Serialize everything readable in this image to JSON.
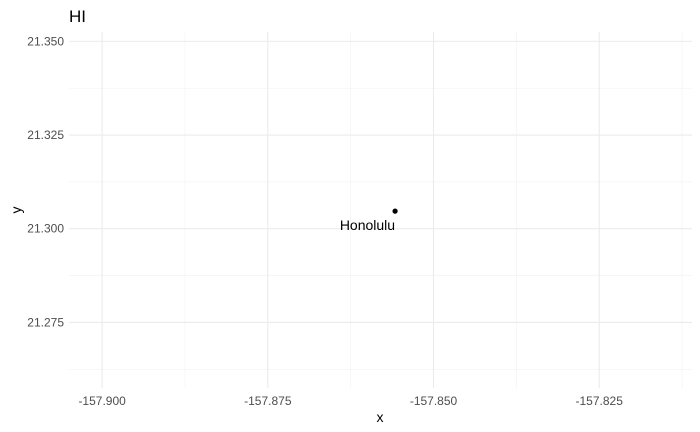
{
  "chart_data": {
    "type": "scatter",
    "title": "HI",
    "xlabel": "x",
    "ylabel": "y",
    "xlim": [
      -157.905,
      -157.811
    ],
    "ylim": [
      21.2575,
      21.3525
    ],
    "x_ticks": [
      -157.9,
      -157.875,
      -157.85,
      -157.825
    ],
    "x_tick_labels": [
      "-157.900",
      "-157.875",
      "-157.850",
      "-157.825"
    ],
    "y_ticks": [
      21.275,
      21.3,
      21.325,
      21.35
    ],
    "y_tick_labels": [
      "21.275",
      "21.300",
      "21.325",
      "21.350"
    ],
    "grid": true,
    "points": [
      {
        "x": -157.8558,
        "y": 21.3047,
        "label": "Honolulu"
      }
    ]
  }
}
